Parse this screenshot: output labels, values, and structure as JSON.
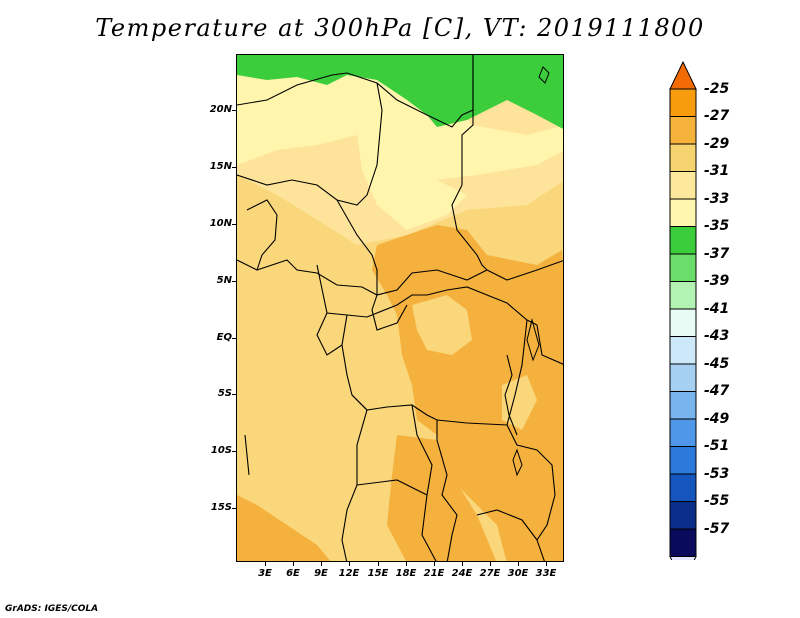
{
  "title": "Temperature at 300hPa [C], VT: 2019111800",
  "footer": "GrADS: IGES/COLA",
  "map": {
    "latitude_labels": [
      "20N",
      "15N",
      "10N",
      "5N",
      "EQ",
      "5S",
      "10S",
      "15S"
    ],
    "longitude_labels": [
      "3E",
      "6E",
      "9E",
      "12E",
      "15E",
      "18E",
      "21E",
      "24E",
      "27E",
      "30E",
      "33E"
    ]
  },
  "colorbar": {
    "labels": [
      "-25",
      "-27",
      "-29",
      "-31",
      "-33",
      "-35",
      "-37",
      "-39",
      "-41",
      "-43",
      "-45",
      "-47",
      "-49",
      "-51",
      "-53",
      "-55",
      "-57"
    ],
    "colors": [
      "#f36b05",
      "#f79c0c",
      "#f5b33b",
      "#f7d36f",
      "#fde99b",
      "#fff7b0",
      "#3ccd3c",
      "#6bdd6b",
      "#b2f2b2",
      "#e9fbf5",
      "#cde8f8",
      "#a6d0f2",
      "#78b4ee",
      "#4f97e8",
      "#2c79dc",
      "#1556be",
      "#0a2f8a",
      "#0a0a5c",
      "#e6e8ff"
    ],
    "shades": {
      "green": "#3ccd3c",
      "pale_yellow": "#fff5ad",
      "light_yellow": "#fde49a",
      "yellow": "#f9d77a",
      "orange": "#f5b13d"
    }
  }
}
